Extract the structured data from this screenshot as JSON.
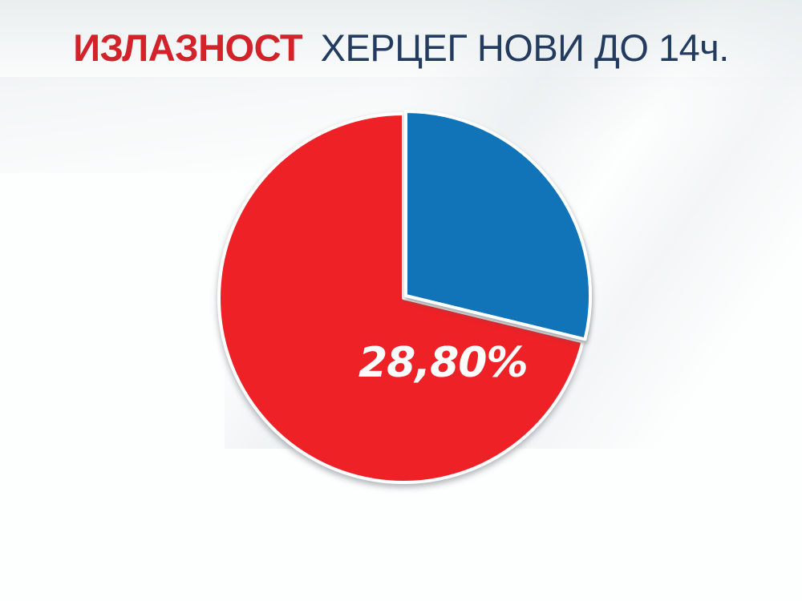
{
  "page": {
    "background_color": "#fdfefe",
    "swoosh_color": "#e8edee"
  },
  "header": {
    "highlight": "ИЗЛАЗНОСТ",
    "rest": "ХЕРЦЕГ НОВИ ДО 14ч.",
    "highlight_color": "#d2232a",
    "rest_color": "#223b5f"
  },
  "chart_data": {
    "type": "pie",
    "title": "ИЗЛАЗНОСТ ХЕРЦЕГ НОВИ ДО 14ч.",
    "slices": [
      {
        "name": "turnout",
        "value": 28.8,
        "color": "#1274b8",
        "label": "28,80%"
      },
      {
        "name": "remainder",
        "value": 71.2,
        "color": "#ee2127",
        "label": ""
      }
    ],
    "total": 100,
    "data_label": {
      "text": "28,80%",
      "color": "#ffffff",
      "refers_to": "turnout",
      "position": "inside-red-slice"
    },
    "start_angle_deg": -90,
    "direction": "clockwise",
    "separator_color": "#ffffff",
    "legend": "none"
  }
}
